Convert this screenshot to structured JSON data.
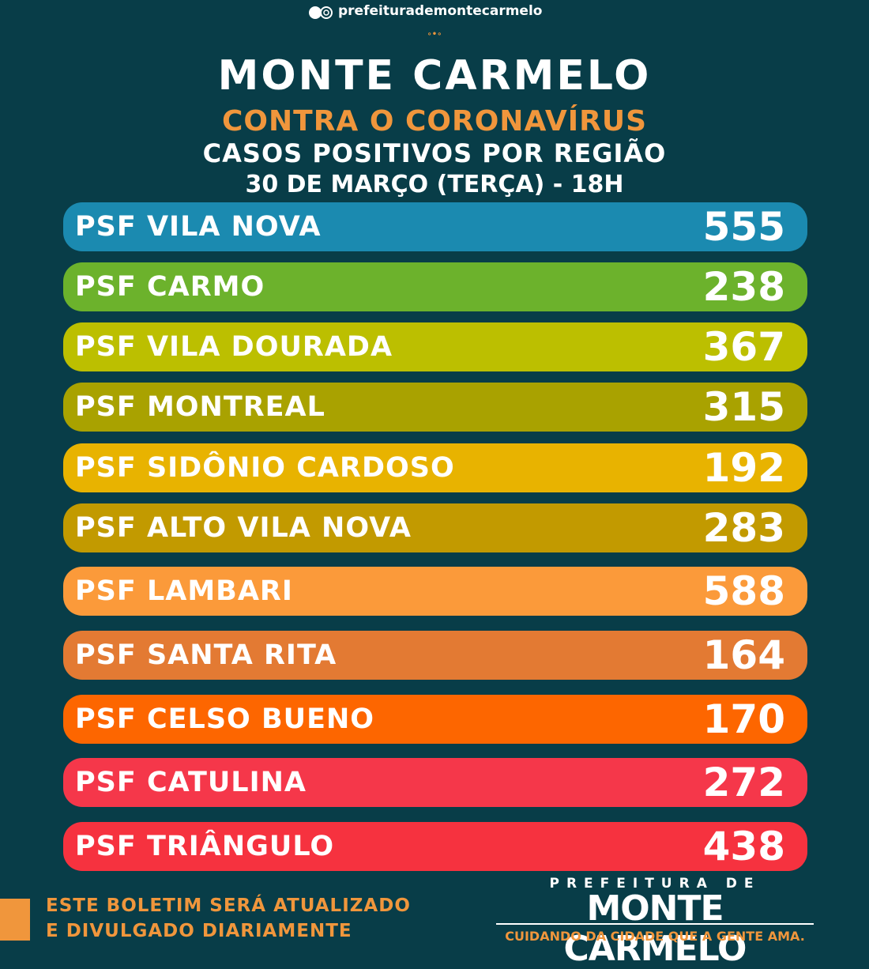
{
  "header": {
    "social": "prefeiturademontecarmelo",
    "title": "MONTE CARMELO",
    "subtitle": "CONTRA O CORONAVÍRUS",
    "heading": "CASOS POSITIVOS POR REGIÃO",
    "date": "30 DE MARÇO (TERÇA) - 18H"
  },
  "rows": [
    {
      "label": "PSF VILA NOVA",
      "value": 555,
      "color": "#1b8ab0"
    },
    {
      "label": "PSF CARMO",
      "value": 238,
      "color": "#6cb22c"
    },
    {
      "label": "PSF VILA DOURADA",
      "value": 367,
      "color": "#bcbf00"
    },
    {
      "label": "PSF MONTREAL",
      "value": 315,
      "color": "#a9a200"
    },
    {
      "label": "PSF SIDÔNIO CARDOSO",
      "value": 192,
      "color": "#e8b300"
    },
    {
      "label": "PSF ALTO VILA NOVA",
      "value": 283,
      "color": "#c29a00"
    },
    {
      "label": "PSF LAMBARI",
      "value": 588,
      "color": "#fb9a3a"
    },
    {
      "label": "PSF SANTA RITA",
      "value": 164,
      "color": "#e37a33"
    },
    {
      "label": "PSF CELSO BUENO",
      "value": 170,
      "color": "#fd6600"
    },
    {
      "label": "PSF CATULINA",
      "value": 272,
      "color": "#f5374a"
    },
    {
      "label": "PSF TRIÂNGULO",
      "value": 438,
      "color": "#f6323f"
    }
  ],
  "footer": {
    "notice": [
      "ESTE BOLETIM SERÁ ATUALIZADO",
      "E DIVULGADO DIARIAMENTE"
    ],
    "logo": {
      "top": "PREFEITURA DE",
      "name": "MONTE CARMELO",
      "slogan": "CUIDANDO DA CIDADE QUE A GENTE AMA."
    }
  }
}
